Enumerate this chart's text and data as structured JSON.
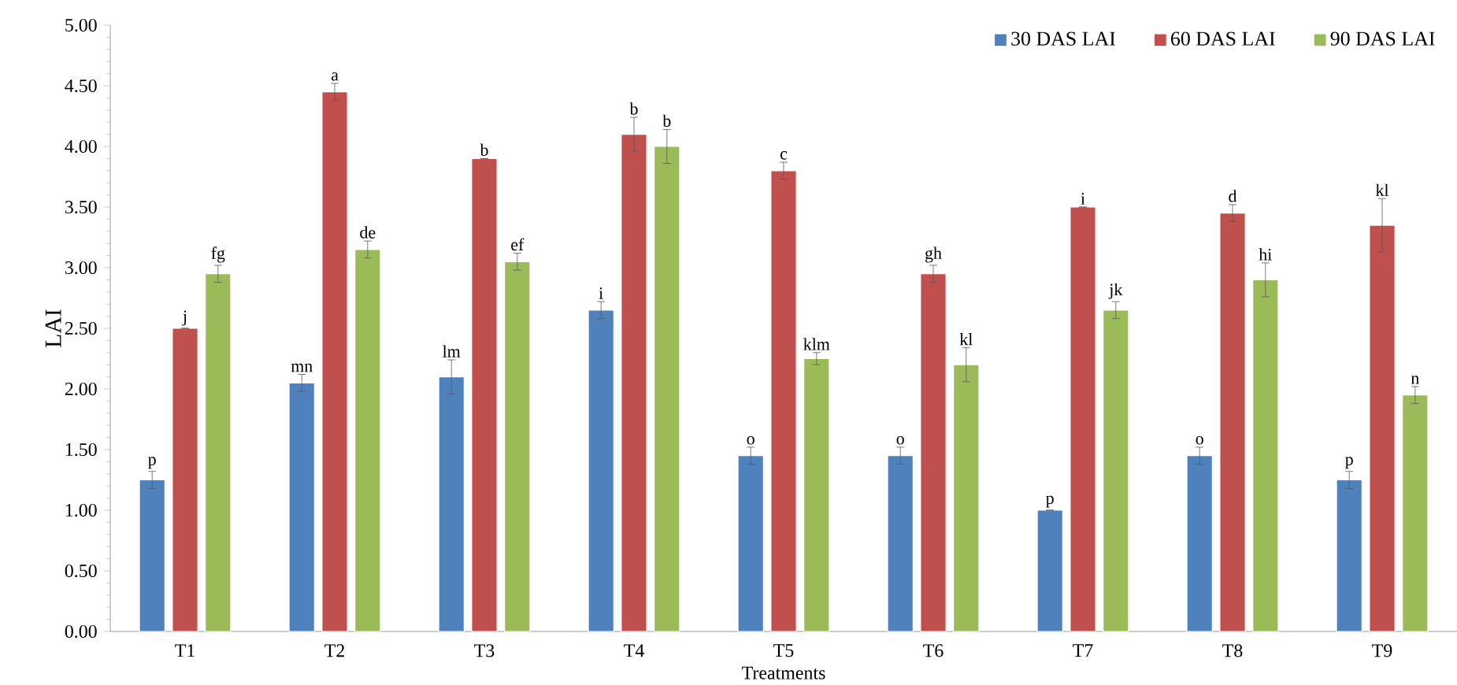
{
  "chart_data": {
    "type": "bar",
    "xlabel": "Treatments",
    "ylabel": "LAI",
    "categories": [
      "T1",
      "T2",
      "T3",
      "T4",
      "T5",
      "T6",
      "T7",
      "T8",
      "T9"
    ],
    "series": [
      {
        "name": "30 DAS LAI",
        "color": "#4f81bd",
        "values": [
          1.25,
          2.05,
          2.1,
          2.65,
          1.45,
          1.45,
          1.0,
          1.45,
          1.25
        ],
        "errors": [
          0.07,
          0.07,
          0.14,
          0.07,
          0.07,
          0.07,
          0,
          0.07,
          0.07
        ]
      },
      {
        "name": "60 DAS  LAI",
        "color": "#c0504d",
        "values": [
          2.5,
          4.45,
          3.9,
          4.1,
          3.8,
          2.95,
          3.5,
          3.45,
          3.35
        ],
        "errors": [
          0,
          0.07,
          0,
          0.14,
          0.07,
          0.07,
          0,
          0.07,
          0.22
        ]
      },
      {
        "name": "90 DAS  LAI",
        "color": "#9bbb59",
        "values": [
          2.95,
          3.15,
          3.05,
          4.0,
          2.25,
          2.2,
          2.65,
          2.9,
          1.95
        ],
        "errors": [
          0.07,
          0.07,
          0.07,
          0.14,
          0.05,
          0.14,
          0.07,
          0.14,
          0.07
        ]
      }
    ],
    "ylim": [
      0,
      5
    ],
    "yticks": [
      {
        "value": 0,
        "label": "0.00"
      },
      {
        "value": 0.5,
        "label": "0.50"
      },
      {
        "value": 1,
        "label": "1.00"
      },
      {
        "value": 1.5,
        "label": "1.50"
      },
      {
        "value": 2,
        "label": "2.00"
      },
      {
        "value": 2.5,
        "label": "2.50"
      },
      {
        "value": 3,
        "label": "3.00"
      },
      {
        "value": 3.5,
        "label": "3.50"
      },
      {
        "value": 4,
        "label": "4.00"
      },
      {
        "value": 4.5,
        "label": "4.50"
      },
      {
        "value": 5,
        "label": "5.00"
      }
    ],
    "grid": false,
    "legend": "top right",
    "annotations": [
      "p",
      "j",
      "fg",
      "mn",
      "a",
      "de",
      "lm",
      "b",
      "ef",
      "i",
      "b",
      "b",
      "o",
      "c",
      "klm",
      "o",
      "gh",
      "kl",
      "p",
      "i",
      "jk",
      "o",
      "d",
      "hi",
      "p",
      "kl",
      "n"
    ]
  }
}
